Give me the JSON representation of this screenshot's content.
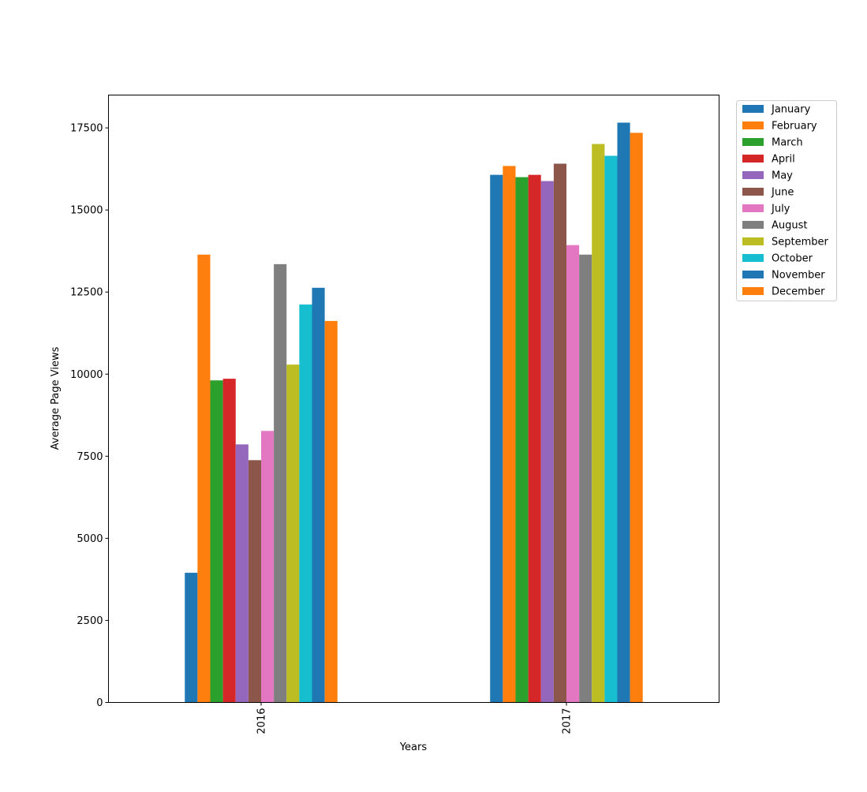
{
  "chart_data": {
    "type": "bar",
    "title": "",
    "xlabel": "Years",
    "ylabel": "Average Page Views",
    "categories": [
      "2016",
      "2017"
    ],
    "ylim": [
      0,
      18500
    ],
    "yticks": [
      0,
      2500,
      5000,
      7500,
      10000,
      12500,
      15000,
      17500
    ],
    "grid": false,
    "legend_position": "outside-top-right",
    "series": [
      {
        "name": "January",
        "color": "#1f77b4",
        "values": [
          3950,
          16070
        ]
      },
      {
        "name": "February",
        "color": "#ff7f0e",
        "values": [
          13640,
          16340
        ]
      },
      {
        "name": "March",
        "color": "#2ca02c",
        "values": [
          9810,
          16000
        ]
      },
      {
        "name": "April",
        "color": "#d62728",
        "values": [
          9860,
          16070
        ]
      },
      {
        "name": "May",
        "color": "#9467bd",
        "values": [
          7860,
          15880
        ]
      },
      {
        "name": "June",
        "color": "#8c564b",
        "values": [
          7380,
          16410
        ]
      },
      {
        "name": "July",
        "color": "#e377c2",
        "values": [
          8270,
          13930
        ]
      },
      {
        "name": "August",
        "color": "#7f7f7f",
        "values": [
          13350,
          13640
        ]
      },
      {
        "name": "September",
        "color": "#bcbd22",
        "values": [
          10290,
          17010
        ]
      },
      {
        "name": "October",
        "color": "#17becf",
        "values": [
          12120,
          16650
        ]
      },
      {
        "name": "November",
        "color": "#1f77b4",
        "values": [
          12630,
          17660
        ]
      },
      {
        "name": "December",
        "color": "#ff7f0e",
        "values": [
          11620,
          17350
        ]
      }
    ]
  }
}
